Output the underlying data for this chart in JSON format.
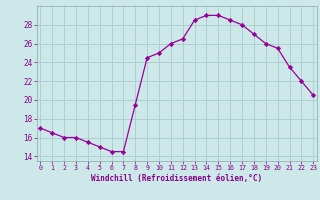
{
  "x": [
    0,
    1,
    2,
    3,
    4,
    5,
    6,
    7,
    8,
    9,
    10,
    11,
    12,
    13,
    14,
    15,
    16,
    17,
    18,
    19,
    20,
    21,
    22,
    23
  ],
  "y": [
    17.0,
    16.5,
    16.0,
    16.0,
    15.5,
    15.0,
    14.5,
    14.5,
    19.5,
    24.5,
    25.0,
    26.0,
    26.5,
    28.5,
    29.0,
    29.0,
    28.5,
    28.0,
    27.0,
    26.0,
    25.5,
    23.5,
    22.0,
    20.5
  ],
  "line_color": "#990099",
  "marker": "D",
  "marker_size": 2.2,
  "bg_color": "#cce8e8",
  "grid_color": "#aacccc",
  "xlabel": "Windchill (Refroidissement éolien,°C)",
  "xlabel_color": "#880088",
  "tick_color": "#880088",
  "ylim": [
    13.5,
    30.0
  ],
  "yticks": [
    14,
    16,
    18,
    20,
    22,
    24,
    26,
    28
  ],
  "xticks": [
    0,
    1,
    2,
    3,
    4,
    5,
    6,
    7,
    8,
    9,
    10,
    11,
    12,
    13,
    14,
    15,
    16,
    17,
    18,
    19,
    20,
    21,
    22,
    23
  ],
  "xlim": [
    -0.3,
    23.3
  ],
  "fig_bg": "#cce8e8"
}
